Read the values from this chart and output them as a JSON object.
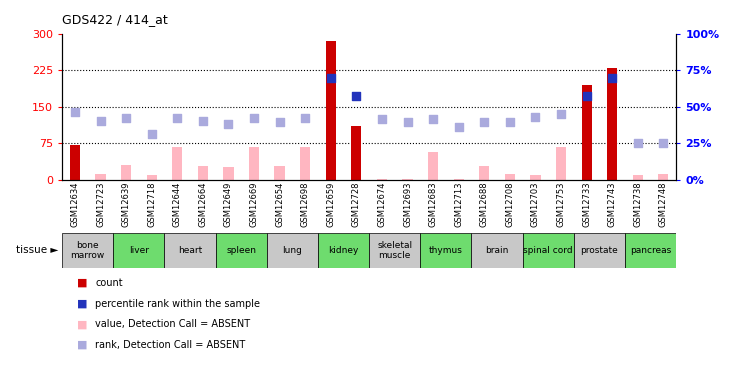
{
  "title": "GDS422 / 414_at",
  "samples": [
    "GSM12634",
    "GSM12723",
    "GSM12639",
    "GSM12718",
    "GSM12644",
    "GSM12664",
    "GSM12649",
    "GSM12669",
    "GSM12654",
    "GSM12698",
    "GSM12659",
    "GSM12728",
    "GSM12674",
    "GSM12693",
    "GSM12683",
    "GSM12713",
    "GSM12688",
    "GSM12708",
    "GSM12703",
    "GSM12753",
    "GSM12733",
    "GSM12743",
    "GSM12738",
    "GSM12748"
  ],
  "tissues": [
    {
      "name": "bone\nmarrow",
      "span": 2,
      "color": "#c8c8c8"
    },
    {
      "name": "liver",
      "span": 2,
      "color": "#6edc6e"
    },
    {
      "name": "heart",
      "span": 2,
      "color": "#c8c8c8"
    },
    {
      "name": "spleen",
      "span": 2,
      "color": "#6edc6e"
    },
    {
      "name": "lung",
      "span": 2,
      "color": "#c8c8c8"
    },
    {
      "name": "kidney",
      "span": 2,
      "color": "#6edc6e"
    },
    {
      "name": "skeletal\nmuscle",
      "span": 2,
      "color": "#c8c8c8"
    },
    {
      "name": "thymus",
      "span": 2,
      "color": "#6edc6e"
    },
    {
      "name": "brain",
      "span": 2,
      "color": "#c8c8c8"
    },
    {
      "name": "spinal cord",
      "span": 2,
      "color": "#6edc6e"
    },
    {
      "name": "prostate",
      "span": 2,
      "color": "#c8c8c8"
    },
    {
      "name": "pancreas",
      "span": 2,
      "color": "#6edc6e"
    }
  ],
  "bar_values": [
    72,
    12,
    30,
    10,
    68,
    28,
    26,
    68,
    28,
    68,
    285,
    110,
    2,
    2,
    58,
    2,
    28,
    12,
    10,
    68,
    195,
    230,
    10,
    12
  ],
  "bar_colors": [
    "#cc0000",
    "#ffb6c1",
    "#ffb6c1",
    "#ffb6c1",
    "#ffb6c1",
    "#ffb6c1",
    "#ffb6c1",
    "#ffb6c1",
    "#ffb6c1",
    "#ffb6c1",
    "#cc0000",
    "#cc0000",
    "#ffb6c1",
    "#ffb6c1",
    "#ffb6c1",
    "#ffb6c1",
    "#ffb6c1",
    "#ffb6c1",
    "#ffb6c1",
    "#ffb6c1",
    "#cc0000",
    "#cc0000",
    "#ffb6c1",
    "#ffb6c1"
  ],
  "rank_values": [
    140,
    122,
    128,
    95,
    128,
    122,
    115,
    128,
    118,
    128,
    210,
    172,
    125,
    120,
    125,
    108,
    120,
    118,
    130,
    135,
    172,
    210,
    75,
    75
  ],
  "rank_colors": [
    "#aaaadd",
    "#aaaadd",
    "#aaaadd",
    "#aaaadd",
    "#aaaadd",
    "#aaaadd",
    "#aaaadd",
    "#aaaadd",
    "#aaaadd",
    "#aaaadd",
    "#2233bb",
    "#2233bb",
    "#aaaadd",
    "#aaaadd",
    "#aaaadd",
    "#aaaadd",
    "#aaaadd",
    "#aaaadd",
    "#aaaadd",
    "#aaaadd",
    "#2233bb",
    "#2233bb",
    "#aaaadd",
    "#aaaadd"
  ],
  "ylim_left": [
    0,
    300
  ],
  "ylim_right": [
    0,
    100
  ],
  "yticks_left": [
    0,
    75,
    150,
    225,
    300
  ],
  "yticks_right": [
    0,
    25,
    50,
    75,
    100
  ],
  "hlines": [
    75,
    150,
    225
  ],
  "bar_width": 0.4,
  "rank_marker_size": 30,
  "fig_width": 7.31,
  "fig_height": 3.75,
  "dpi": 100
}
